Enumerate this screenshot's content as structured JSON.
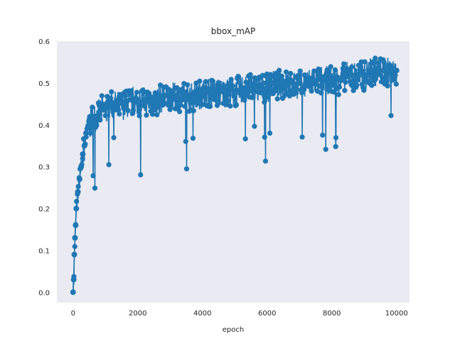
{
  "chart_data": {
    "type": "line",
    "title": "bbox_mAP",
    "xlabel": "epoch",
    "ylabel": "",
    "xlim": [
      -500,
      10400
    ],
    "ylim": [
      -0.025,
      0.6
    ],
    "xticks": [
      0,
      2000,
      4000,
      6000,
      8000,
      10000
    ],
    "xtick_labels": [
      "0",
      "2000",
      "4000",
      "6000",
      "8000",
      "10000"
    ],
    "yticks": [
      0.0,
      0.1,
      0.2,
      0.3,
      0.4,
      0.5,
      0.6
    ],
    "ytick_labels": [
      "0.0",
      "0.1",
      "0.2",
      "0.3",
      "0.4",
      "0.5",
      "0.6"
    ],
    "grid": false,
    "legend": "none",
    "colors": {
      "series": "#1f77b4",
      "plot_background": "#eaeaf2"
    },
    "series": [
      {
        "marker": "circle",
        "x": [
          0,
          20,
          40,
          60,
          80,
          100,
          150,
          200,
          250,
          300,
          350,
          400,
          500,
          600,
          700,
          800,
          900,
          1000,
          1200,
          1400,
          1600,
          1800,
          2000,
          2200,
          2400,
          2600,
          2800,
          3000,
          3200,
          3400,
          3600,
          3800,
          4000,
          4200,
          4400,
          4600,
          4800,
          5000,
          5200,
          5400,
          5600,
          5800,
          6000,
          6200,
          6400,
          6600,
          6800,
          7000,
          7200,
          7400,
          7600,
          7800,
          8000,
          8200,
          8400,
          8600,
          8800,
          9000,
          9200,
          9400,
          9600,
          9800,
          10000
        ],
        "y": [
          0.0,
          0.03,
          0.09,
          0.13,
          0.16,
          0.2,
          0.24,
          0.27,
          0.3,
          0.33,
          0.35,
          0.38,
          0.4,
          0.42,
          0.42,
          0.43,
          0.44,
          0.44,
          0.45,
          0.45,
          0.45,
          0.46,
          0.46,
          0.46,
          0.46,
          0.46,
          0.47,
          0.47,
          0.47,
          0.47,
          0.47,
          0.47,
          0.48,
          0.48,
          0.48,
          0.48,
          0.48,
          0.48,
          0.49,
          0.49,
          0.49,
          0.49,
          0.49,
          0.5,
          0.5,
          0.5,
          0.5,
          0.5,
          0.5,
          0.51,
          0.51,
          0.51,
          0.51,
          0.51,
          0.52,
          0.52,
          0.52,
          0.52,
          0.53,
          0.53,
          0.53,
          0.53,
          0.53
        ]
      }
    ]
  }
}
